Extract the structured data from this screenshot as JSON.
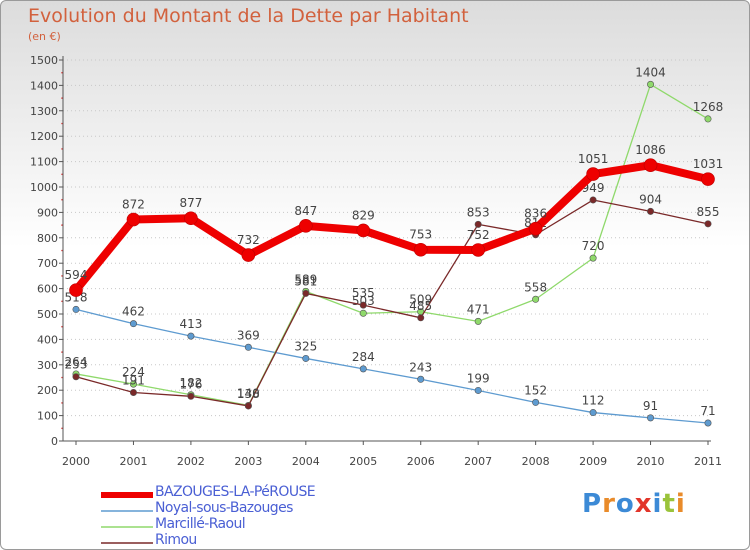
{
  "header": {
    "title": "Evolution du Montant de la Dette par Habitant",
    "subtitle": "(en €)"
  },
  "chart_data": {
    "type": "line",
    "x": [
      "2000",
      "2001",
      "2002",
      "2003",
      "2004",
      "2005",
      "2006",
      "2007",
      "2008",
      "2009",
      "2010",
      "2011"
    ],
    "ylim": [
      0,
      1500
    ],
    "yticks": [
      0,
      100,
      200,
      300,
      400,
      500,
      600,
      700,
      800,
      900,
      1000,
      1100,
      1200,
      1300,
      1400,
      1500
    ],
    "grid": "horizontal dotted",
    "legend_position": "bottom-left",
    "series": [
      {
        "name": "BAZOUGES-LA-PéROUSE",
        "color": "#ee0000",
        "values": [
          594,
          872,
          877,
          732,
          847,
          829,
          753,
          752,
          836,
          1051,
          1086,
          1031
        ]
      },
      {
        "name": "Noyal-sous-Bazouges",
        "color": "#5e9bd0",
        "values": [
          518,
          462,
          413,
          369,
          325,
          284,
          243,
          199,
          152,
          112,
          91,
          71
        ]
      },
      {
        "name": "Marcillé-Raoul",
        "color": "#8fd96b",
        "values": [
          264,
          224,
          182,
          140,
          589,
          503,
          509,
          471,
          558,
          720,
          1404,
          1268
        ]
      },
      {
        "name": "Rimou",
        "color": "#7a2929",
        "values": [
          253,
          191,
          176,
          138,
          581,
          535,
          485,
          853,
          812,
          949,
          904,
          855
        ]
      }
    ]
  },
  "logo": {
    "letters": [
      "P",
      "r",
      "o",
      "x",
      "i",
      "t",
      "i"
    ],
    "colors": [
      "#3c8ad6",
      "#e98b2a",
      "#3c8ad6",
      "#e2352a",
      "#3c8ad6",
      "#9ac33a",
      "#e98b2a"
    ]
  }
}
